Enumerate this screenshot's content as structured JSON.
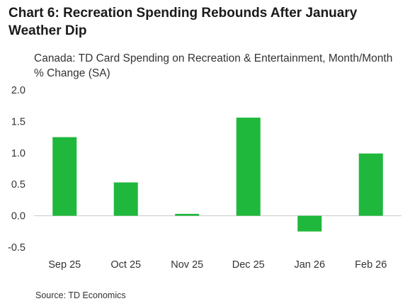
{
  "title": "Chart 6: Recreation Spending Rebounds After January Weather Dip",
  "source": "Source: TD Economics",
  "colors": {
    "bar": "#1fb83c",
    "axis": "#c8c8c8",
    "text": "#333333"
  },
  "chart_data": {
    "type": "bar",
    "subtitle": "Canada: TD Card Spending on Recreation & Entertainment, Month/Month % Change (SA)",
    "categories": [
      "Sep 25",
      "Oct 25",
      "Nov 25",
      "Dec 25",
      "Jan 26",
      "Feb 26"
    ],
    "values": [
      1.25,
      0.53,
      0.03,
      1.56,
      -0.25,
      0.99
    ],
    "ylim": [
      -0.5,
      2.0
    ],
    "yticks": [
      "2.0",
      "1.5",
      "1.0",
      "0.5",
      "0.0",
      "-0.5"
    ],
    "grid": false,
    "legend": "none"
  }
}
